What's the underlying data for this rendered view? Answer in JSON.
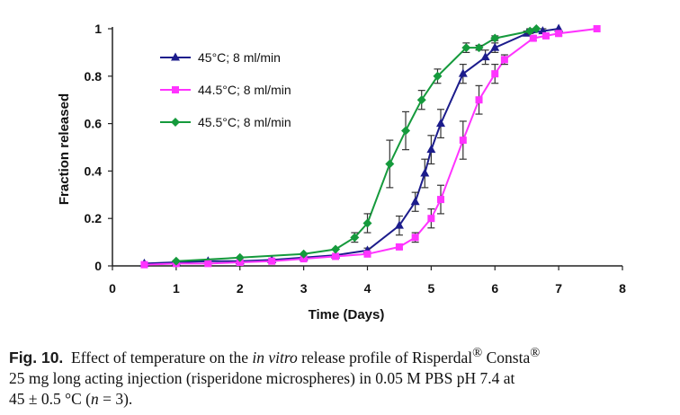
{
  "chart_data": {
    "type": "line",
    "title": "",
    "xlabel": "Time (Days)",
    "ylabel": "Fraction released",
    "xlim": [
      0,
      8
    ],
    "ylim": [
      0,
      1
    ],
    "xticks": [
      "0",
      "1",
      "2",
      "3",
      "4",
      "5",
      "6",
      "7",
      "8"
    ],
    "yticks": [
      "0",
      "0.2",
      "0.4",
      "0.6",
      "0.8",
      "1"
    ],
    "legend_position": "top-left",
    "series": [
      {
        "name": "45°C; 8 ml/min",
        "color": "#1c1c8c",
        "marker": "triangle",
        "x": [
          0.5,
          1,
          1.5,
          2,
          2.5,
          3,
          3.5,
          4,
          4.5,
          4.75,
          4.9,
          5,
          5.15,
          5.5,
          5.85,
          6,
          6.5,
          6.75,
          7
        ],
        "y": [
          0.01,
          0.015,
          0.02,
          0.02,
          0.025,
          0.035,
          0.045,
          0.065,
          0.17,
          0.27,
          0.39,
          0.49,
          0.6,
          0.81,
          0.88,
          0.92,
          0.98,
          0.99,
          1.0
        ],
        "error": [
          0,
          0,
          0,
          0,
          0,
          0,
          0,
          0.01,
          0.04,
          0.04,
          0.06,
          0.06,
          0.06,
          0.04,
          0.03,
          0.02,
          0.01,
          0.01,
          0
        ]
      },
      {
        "name": "44.5°C; 8 ml/min",
        "color": "#ff33ff",
        "marker": "square",
        "x": [
          0.5,
          1,
          1.5,
          2,
          2.5,
          3,
          3.5,
          4,
          4.5,
          4.75,
          5,
          5.15,
          5.5,
          5.75,
          6,
          6.15,
          6.6,
          6.8,
          7,
          7.6
        ],
        "y": [
          0.005,
          0.01,
          0.01,
          0.015,
          0.02,
          0.03,
          0.04,
          0.05,
          0.08,
          0.12,
          0.2,
          0.28,
          0.53,
          0.7,
          0.81,
          0.87,
          0.96,
          0.97,
          0.98,
          1.0
        ],
        "error": [
          0,
          0,
          0,
          0,
          0,
          0,
          0,
          0.01,
          0.01,
          0.02,
          0.04,
          0.06,
          0.08,
          0.06,
          0.04,
          0.02,
          0.01,
          0.01,
          0.01,
          0
        ]
      },
      {
        "name": "45.5°C; 8 ml/min",
        "color": "#159a3c",
        "marker": "diamond",
        "x": [
          1,
          2,
          3,
          3.5,
          3.8,
          4,
          4.35,
          4.6,
          4.85,
          5.1,
          5.55,
          5.75,
          6,
          6.55,
          6.65
        ],
        "y": [
          0.02,
          0.035,
          0.05,
          0.07,
          0.12,
          0.18,
          0.43,
          0.57,
          0.7,
          0.8,
          0.92,
          0.92,
          0.96,
          0.99,
          1.0
        ],
        "error": [
          0,
          0,
          0,
          0,
          0.02,
          0.04,
          0.1,
          0.08,
          0.04,
          0.03,
          0.02,
          0.01,
          0.01,
          0.01,
          0
        ]
      }
    ]
  },
  "caption": {
    "label": "Fig. 10.",
    "text_before_italic": "Effect of temperature on the",
    "italic_text": "in vitro",
    "text_release_profile": "release profile of Risperdal",
    "reg_mark_1": "®",
    "consta": "Consta",
    "reg_mark_2": "®",
    "line2_text": "25 mg long acting injection (risperidone microspheres) in 0.05 M PBS pH 7.4 at",
    "line3_prefix": "45 ± 0.5 °C (",
    "n_var": "n",
    "line3_suffix": " = 3)."
  }
}
